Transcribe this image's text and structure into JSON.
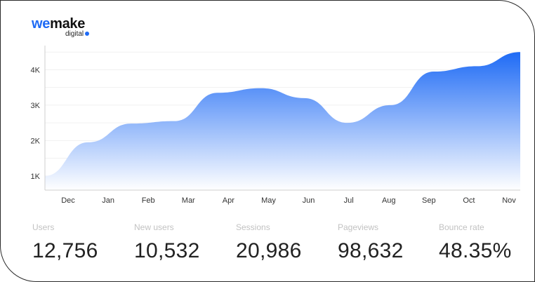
{
  "logo": {
    "word_part1": "we",
    "word_part2": "make",
    "sub": "digital",
    "brand_color": "#1f6bf5"
  },
  "chart_data": {
    "type": "area",
    "title": "",
    "xlabel": "",
    "ylabel": "",
    "categories": [
      "Dec",
      "Jan",
      "Feb",
      "Mar",
      "Apr",
      "May",
      "Jun",
      "Jul",
      "Aug",
      "Sep",
      "Oct",
      "Nov"
    ],
    "y_ticks": [
      "1K",
      "2K",
      "3K",
      "4K"
    ],
    "ylim": [
      600,
      5000
    ],
    "series": [
      {
        "values": [
          1000,
          1950,
          2480,
          2550,
          3350,
          3480,
          3200,
          2500,
          3000,
          3950,
          4100,
          4500
        ]
      }
    ],
    "gradient_top": "#1f6bf5",
    "gradient_bottom": "#ffffff",
    "grid": true,
    "smooth": true
  },
  "stats": [
    {
      "label": "Users",
      "value": "12,756"
    },
    {
      "label": "New users",
      "value": "10,532"
    },
    {
      "label": "Sessions",
      "value": "20,986"
    },
    {
      "label": "Pageviews",
      "value": "98,632"
    },
    {
      "label": "Bounce rate",
      "value": "48.35%"
    }
  ]
}
